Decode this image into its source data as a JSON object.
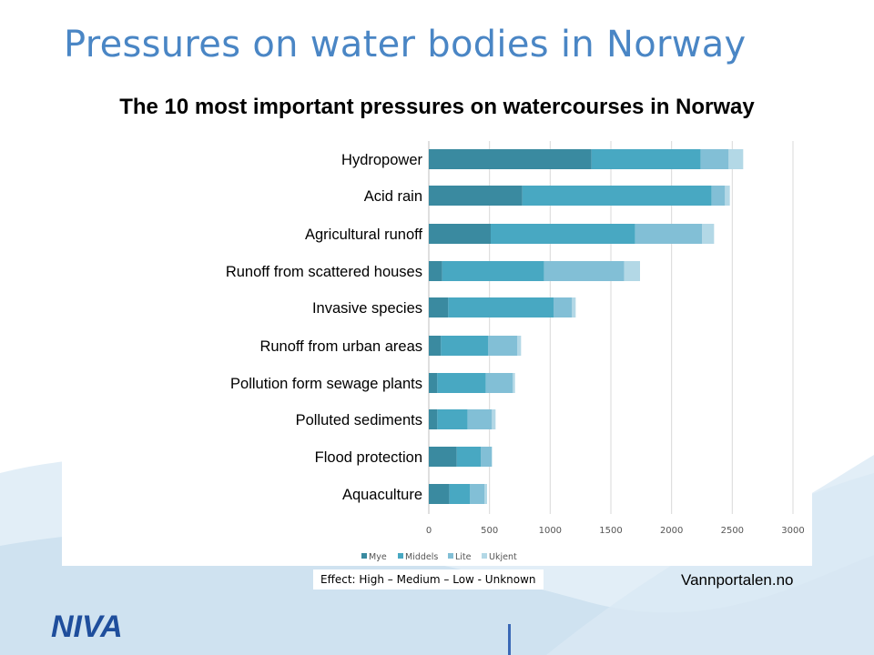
{
  "slide": {
    "title": "Pressures on water bodies in Norway",
    "effect_note": "Effect: High – Medium – Low - Unknown",
    "source": "Vannportalen.no",
    "logo_text": "NIVA",
    "colors": {
      "title": "#4a86c5",
      "logo": "#1f4e9c",
      "wave": "#d6e6f2"
    }
  },
  "chart_data": {
    "type": "bar",
    "orientation": "horizontal",
    "stacked": true,
    "title": "The 10 most important pressures on watercourses in Norway",
    "categories": [
      "Hydropower",
      "Acid rain",
      "Agricultural runoff",
      "Runoff from scattered houses",
      "Invasive species",
      "Runoff from urban areas",
      "Pollution form sewage plants",
      "Polluted sediments",
      "Flood protection",
      "Aquaculture"
    ],
    "series": [
      {
        "name": "Mye",
        "color": "#3a8aa0",
        "values": [
          1340,
          770,
          510,
          110,
          160,
          100,
          70,
          70,
          230,
          170
        ]
      },
      {
        "name": "Middels",
        "color": "#48a8c2",
        "values": [
          900,
          1560,
          1190,
          840,
          870,
          390,
          400,
          250,
          200,
          170
        ]
      },
      {
        "name": "Lite",
        "color": "#82bfd6",
        "values": [
          230,
          110,
          550,
          660,
          150,
          240,
          220,
          200,
          90,
          120
        ]
      },
      {
        "name": "Ukjent",
        "color": "#b3d8e6",
        "values": [
          120,
          40,
          100,
          130,
          30,
          30,
          20,
          30,
          0,
          20
        ]
      }
    ],
    "x_ticks": [
      "0",
      "500",
      "1000",
      "1500",
      "2000",
      "2500",
      "3000"
    ],
    "xlim": [
      0,
      3000
    ],
    "grid": true,
    "legend_position": "bottom"
  }
}
